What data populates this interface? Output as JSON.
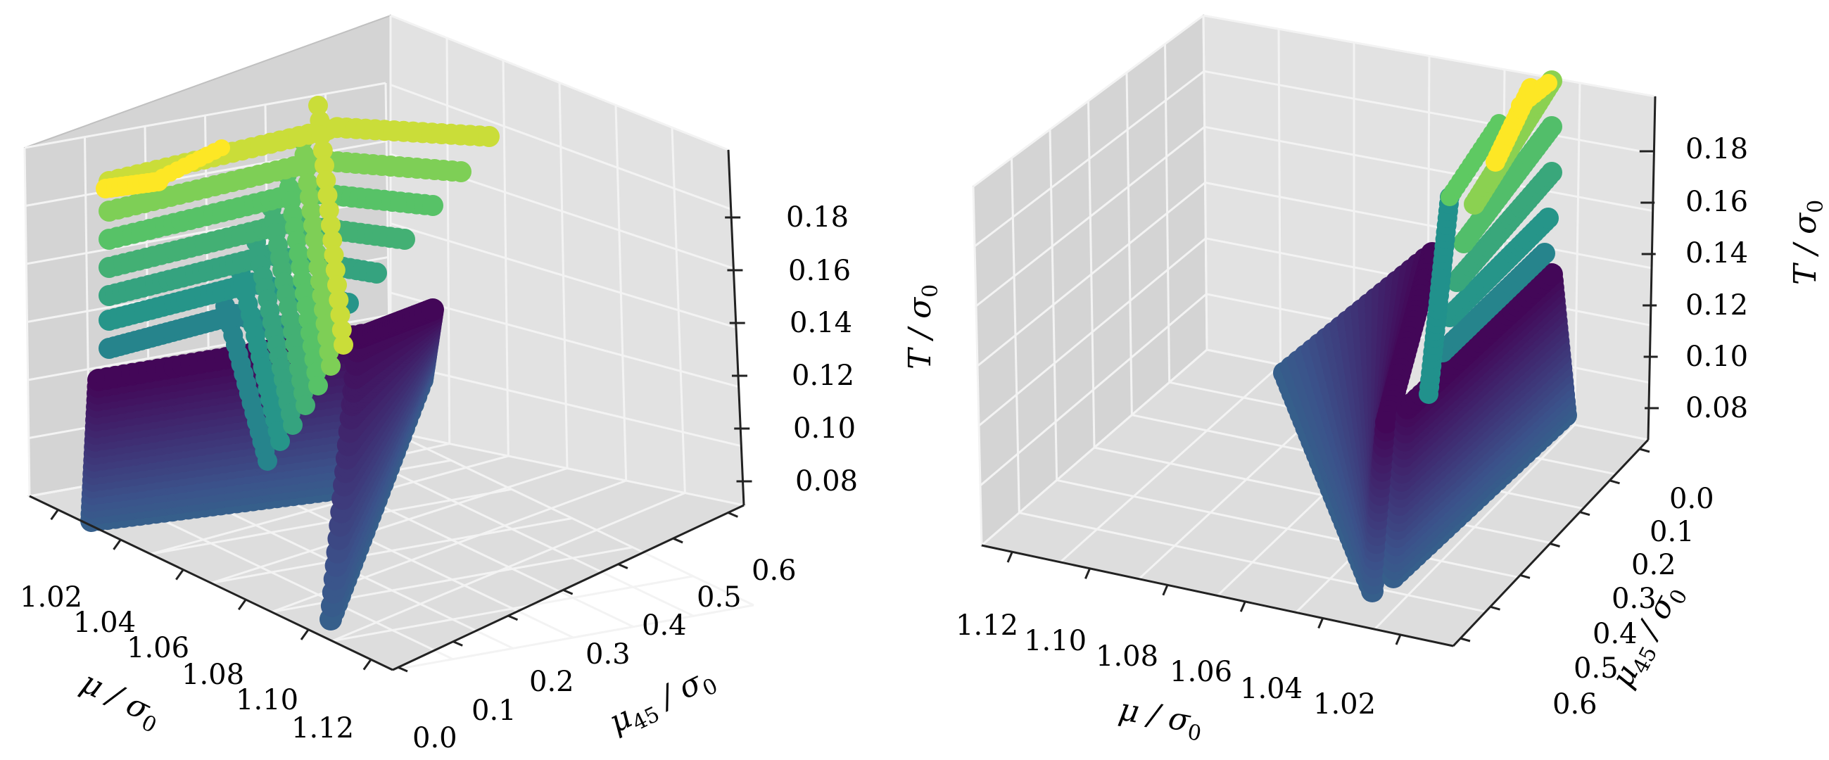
{
  "chart_data": [
    {
      "type": "scatter3d",
      "view": "left",
      "xlabel": "μ/σ0",
      "ylabel": "μ45/σ0",
      "zlabel": "T/σ0",
      "x_ticks": [
        "1.02",
        "1.04",
        "1.06",
        "1.08",
        "1.10",
        "1.12"
      ],
      "y_ticks": [
        "0.0",
        "0.1",
        "0.2",
        "0.3",
        "0.4",
        "0.5",
        "0.6"
      ],
      "z_ticks": [
        "0.08",
        "0.10",
        "0.12",
        "0.14",
        "0.16",
        "0.18"
      ],
      "xlim": [
        1.01,
        1.125
      ],
      "ylim": [
        0.0,
        0.65
      ],
      "zlim": [
        0.07,
        0.19
      ],
      "grid": true,
      "colormap": "viridis",
      "colormap_colors": [
        "#440154",
        "#3b528b",
        "#21918c",
        "#5ec962",
        "#fde725"
      ]
    },
    {
      "type": "scatter3d",
      "view": "right",
      "xlabel": "μ/σ0",
      "ylabel": "μ45/σ0",
      "zlabel": "T/σ0",
      "x_ticks": [
        "1.12",
        "1.10",
        "1.08",
        "1.06",
        "1.04",
        "1.02"
      ],
      "y_ticks": [
        "0.0",
        "0.1",
        "0.2",
        "0.3",
        "0.4",
        "0.5",
        "0.6"
      ],
      "z_ticks": [
        "0.08",
        "0.10",
        "0.12",
        "0.14",
        "0.16",
        "0.18"
      ],
      "xlim": [
        1.01,
        1.125
      ],
      "ylim": [
        0.0,
        0.65
      ],
      "zlim": [
        0.07,
        0.19
      ],
      "grid": true,
      "colormap": "viridis",
      "colormap_colors": [
        "#440154",
        "#3b528b",
        "#21918c",
        "#5ec962",
        "#fde725"
      ]
    }
  ]
}
